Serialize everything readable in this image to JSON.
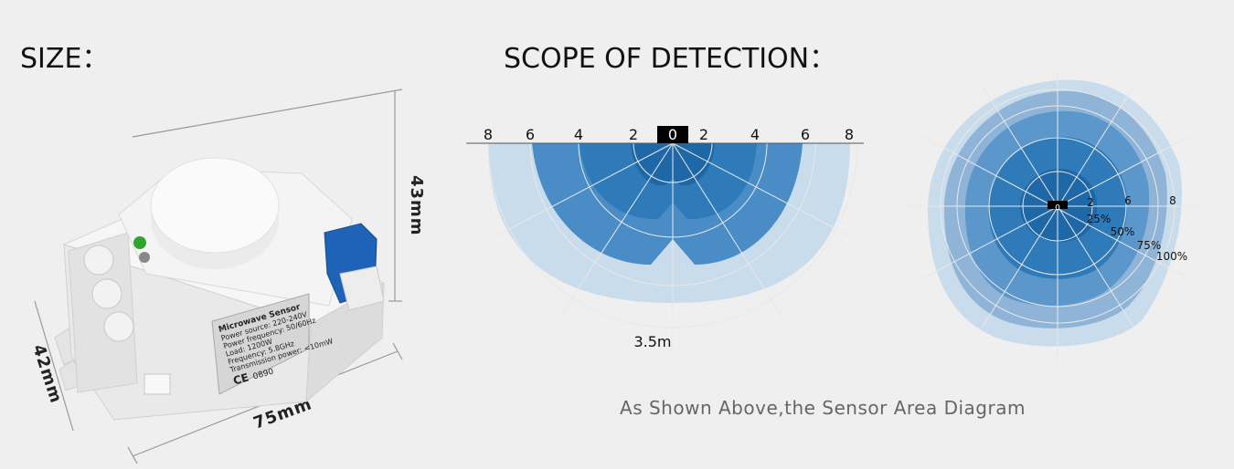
{
  "size_section": {
    "title": "SIZE：",
    "dimensions": {
      "height": "43mm",
      "depth": "42mm",
      "length": "75mm"
    },
    "device_label": [
      "Microwave Sensor",
      "Power source: 220-240V",
      "Power frequency: 50/60Hz",
      "Load: 1200W",
      "Frequency: 5.8GHz",
      "Transmission power: <10mW",
      "CE",
      "0890"
    ]
  },
  "detection_section": {
    "title": "SCOPE OF DETECTION：",
    "side_view": {
      "scale_labels": [
        "8",
        "6",
        "4",
        "2",
        "0",
        "2",
        "4",
        "6",
        "8"
      ],
      "range_label": "3.5m"
    },
    "top_view": {
      "center_label": "0",
      "distance_labels": [
        "2",
        "6",
        "8"
      ],
      "percent_labels": [
        "25%",
        "50%",
        "75%",
        "100%"
      ]
    }
  },
  "caption": "As Shown Above,the Sensor Area Diagram"
}
